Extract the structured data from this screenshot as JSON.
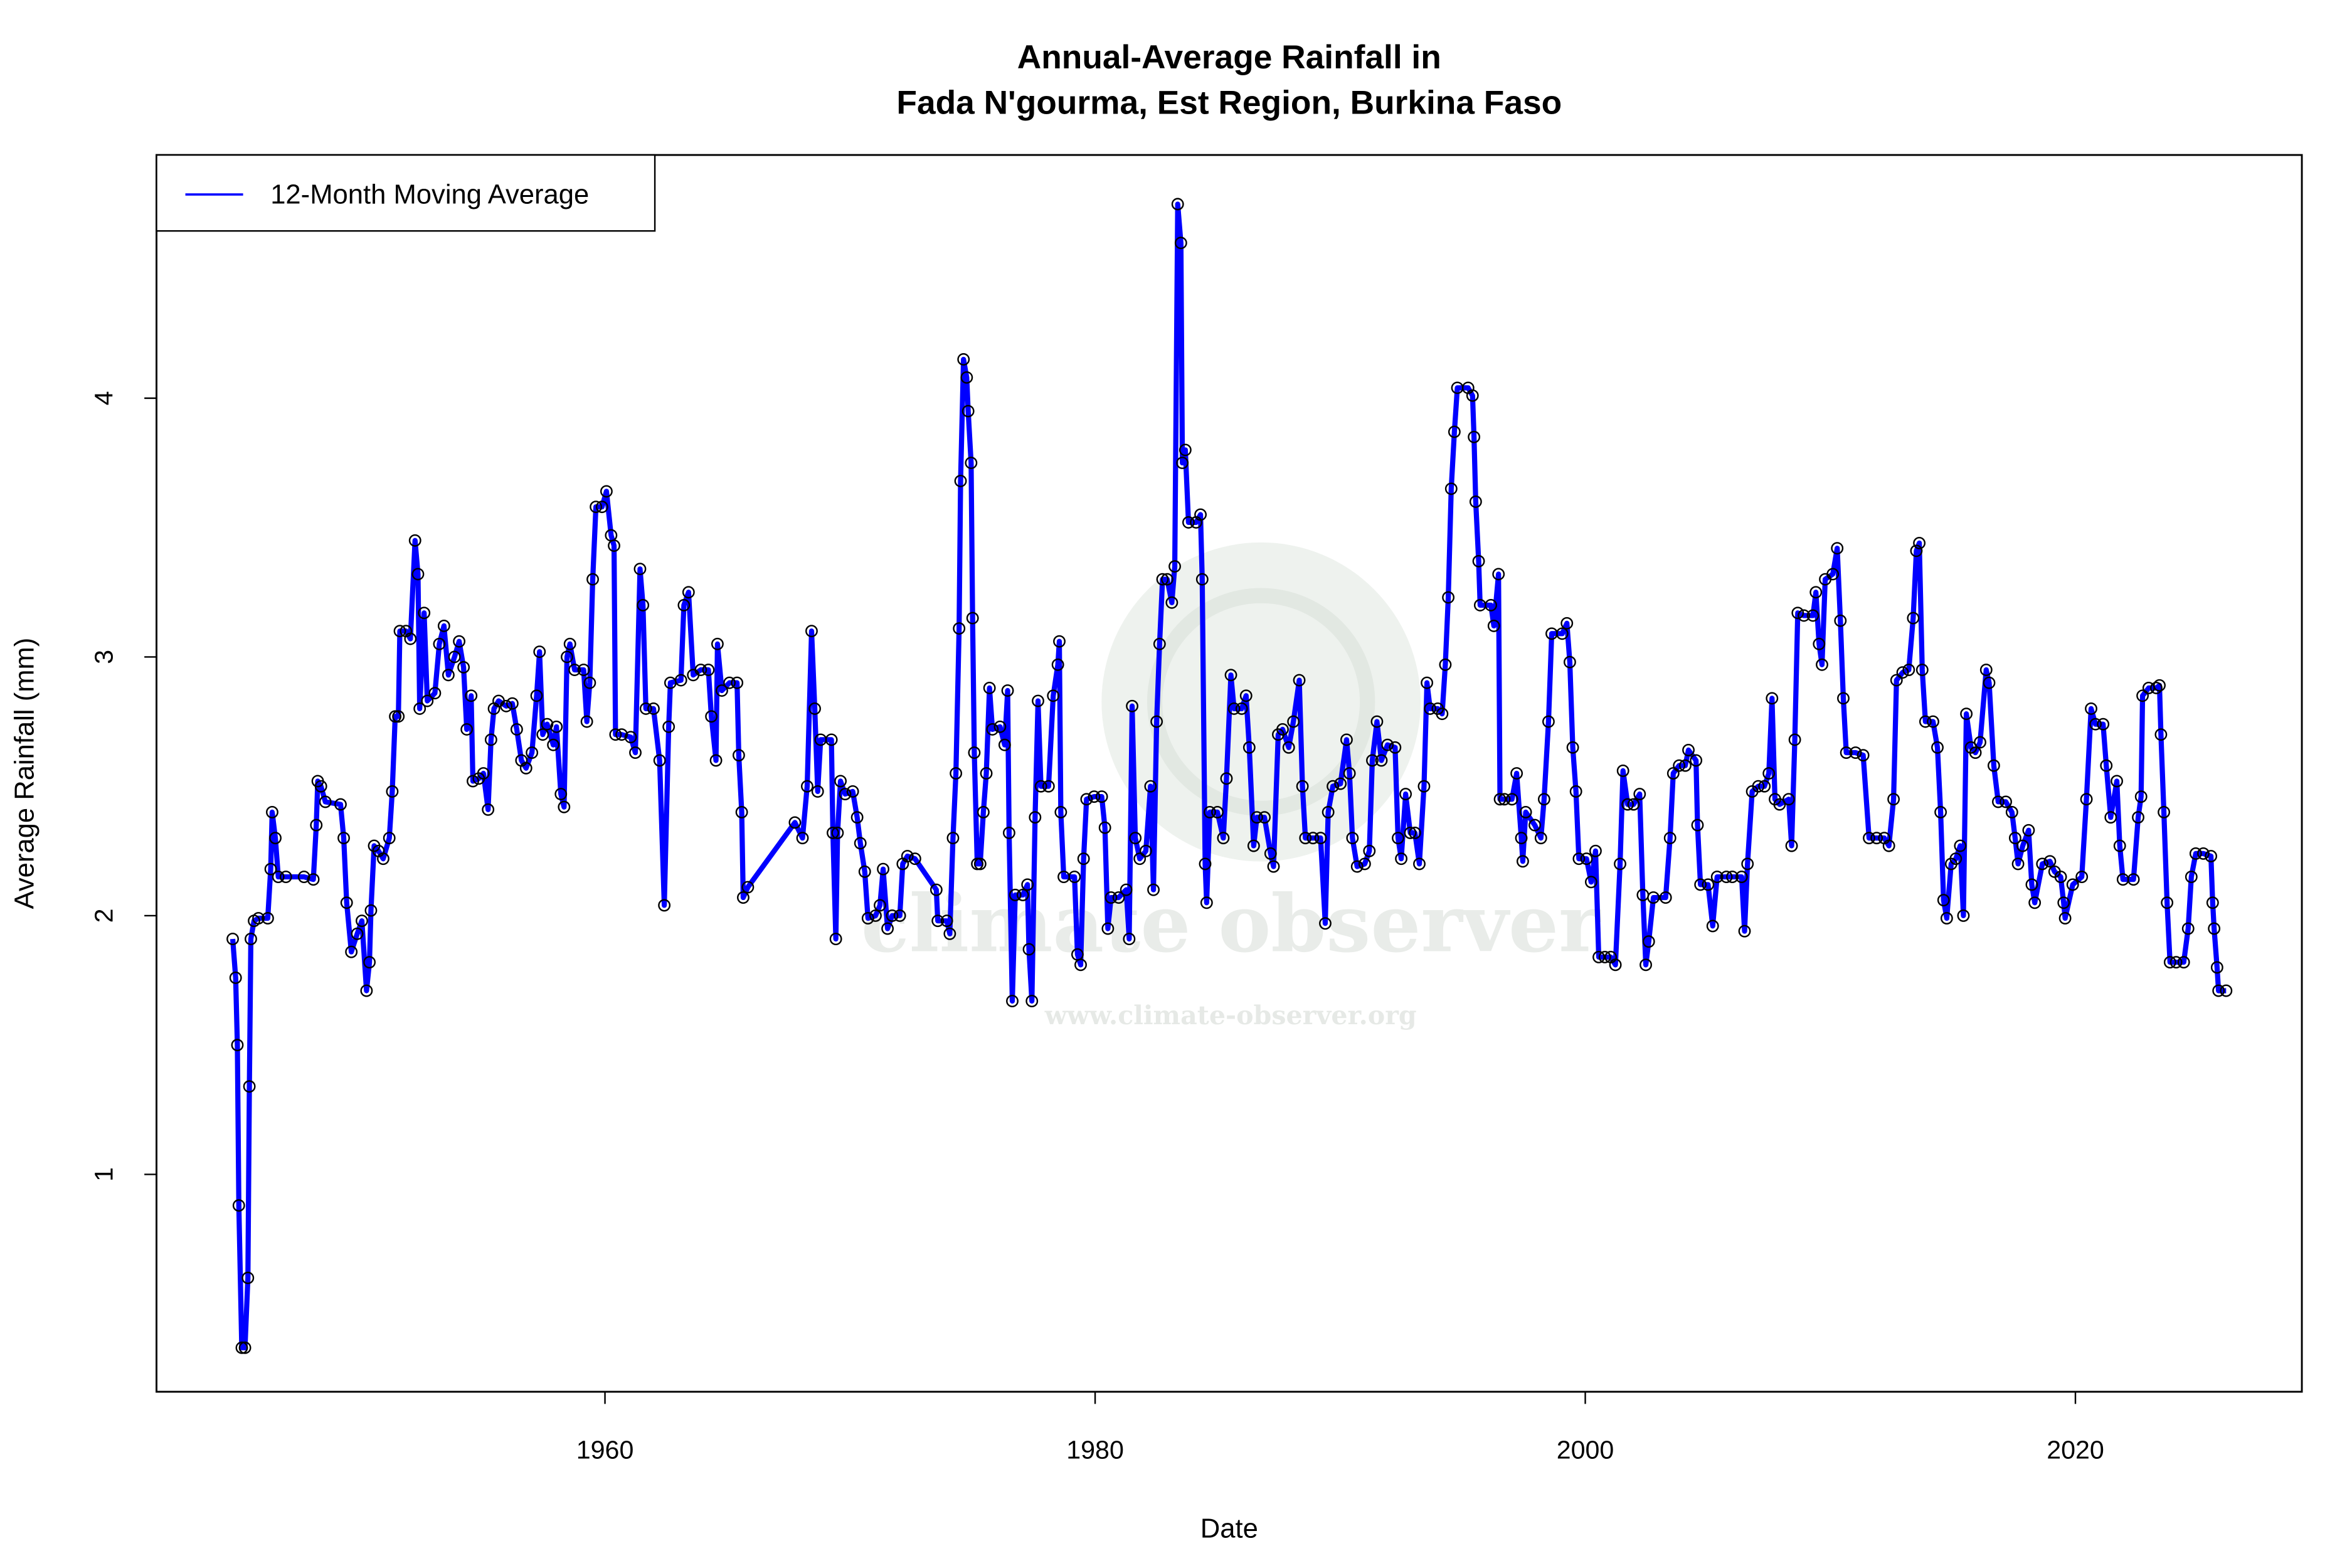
{
  "chart_data": {
    "type": "line",
    "title": [
      "Annual-Average Rainfall in",
      "Fada N'gourma, Est Region, Burkina Faso"
    ],
    "x_label": "Date",
    "y_label": "Average Rainfall (mm)",
    "watermark": "climate observer",
    "watermark_url": "www.climate-observer.org",
    "xlim": [
      1941.7,
      2029.24
    ],
    "ylim": [
      0.16,
      4.94
    ],
    "xticks": [
      1960,
      1980,
      2000,
      2020
    ],
    "yticks": [
      1,
      2,
      3,
      4
    ],
    "legend": "topleft",
    "point_color": "#000000",
    "x": [
      1944.81,
      1944.93,
      1945.0,
      1945.06,
      1945.18,
      1945.31,
      1945.43,
      1945.49,
      1945.55,
      1945.68,
      1945.86,
      1946.24,
      1946.36,
      1946.42,
      1946.55,
      1946.67,
      1946.98,
      1947.72,
      1948.1,
      1948.22,
      1948.28,
      1948.41,
      1948.59,
      1949.21,
      1949.34,
      1949.46,
      1949.65,
      1949.89,
      1950.08,
      1950.27,
      1950.39,
      1950.45,
      1950.58,
      1950.76,
      1950.95,
      1951.2,
      1951.32,
      1951.44,
      1951.57,
      1951.63,
      1951.88,
      1952.06,
      1952.25,
      1952.37,
      1952.44,
      1952.62,
      1952.75,
      1953.06,
      1953.24,
      1953.43,
      1953.61,
      1953.86,
      1954.05,
      1954.23,
      1954.36,
      1954.54,
      1954.61,
      1954.85,
      1955.04,
      1955.23,
      1955.35,
      1955.47,
      1955.66,
      1955.97,
      1956.22,
      1956.4,
      1956.59,
      1956.78,
      1957.02,
      1957.21,
      1957.33,
      1957.46,
      1957.64,
      1957.89,
      1958.02,
      1958.2,
      1958.33,
      1958.45,
      1958.57,
      1958.76,
      1959.13,
      1959.26,
      1959.38,
      1959.5,
      1959.63,
      1959.88,
      1960.06,
      1960.25,
      1960.37,
      1960.43,
      1960.68,
      1961.05,
      1961.24,
      1961.43,
      1961.55,
      1961.67,
      1961.98,
      1962.23,
      1962.42,
      1962.6,
      1962.67,
      1963.1,
      1963.22,
      1963.41,
      1963.6,
      1963.91,
      1964.22,
      1964.34,
      1964.53,
      1964.59,
      1964.77,
      1965.08,
      1965.39,
      1965.46,
      1965.58,
      1965.64,
      1965.83,
      1967.75,
      1968.06,
      1968.25,
      1968.43,
      1968.56,
      1968.68,
      1968.8,
      1969.24,
      1969.3,
      1969.42,
      1969.49,
      1969.61,
      1969.8,
      1970.11,
      1970.29,
      1970.42,
      1970.6,
      1970.73,
      1971.04,
      1971.22,
      1971.35,
      1971.53,
      1971.72,
      1972.03,
      1972.15,
      1972.34,
      1972.65,
      1973.52,
      1973.58,
      1973.95,
      1974.07,
      1974.2,
      1974.32,
      1974.45,
      1974.51,
      1974.63,
      1974.76,
      1974.82,
      1974.94,
      1975.0,
      1975.07,
      1975.19,
      1975.31,
      1975.44,
      1975.56,
      1975.69,
      1975.81,
      1976.12,
      1976.31,
      1976.43,
      1976.49,
      1976.62,
      1976.74,
      1977.05,
      1977.24,
      1977.3,
      1977.42,
      1977.55,
      1977.67,
      1977.79,
      1978.1,
      1978.29,
      1978.48,
      1978.54,
      1978.6,
      1978.72,
      1979.16,
      1979.28,
      1979.41,
      1979.53,
      1979.65,
      1979.96,
      1980.27,
      1980.4,
      1980.52,
      1980.65,
      1980.96,
      1981.27,
      1981.39,
      1981.51,
      1981.64,
      1981.82,
      1982.07,
      1982.26,
      1982.38,
      1982.51,
      1982.63,
      1982.75,
      1982.94,
      1983.13,
      1983.25,
      1983.37,
      1983.5,
      1983.56,
      1983.68,
      1983.81,
      1984.12,
      1984.3,
      1984.37,
      1984.49,
      1984.55,
      1984.68,
      1984.99,
      1985.23,
      1985.36,
      1985.54,
      1985.67,
      1985.98,
      1986.16,
      1986.29,
      1986.47,
      1986.6,
      1986.91,
      1987.16,
      1987.28,
      1987.47,
      1987.65,
      1987.9,
      1988.09,
      1988.33,
      1988.46,
      1988.58,
      1988.89,
      1989.2,
      1989.39,
      1989.51,
      1989.7,
      1990.01,
      1990.26,
      1990.38,
      1990.5,
      1990.69,
      1991.0,
      1991.19,
      1991.31,
      1991.5,
      1991.68,
      1991.93,
      1992.24,
      1992.36,
      1992.49,
      1992.67,
      1992.86,
      1993.05,
      1993.23,
      1993.42,
      1993.54,
      1993.67,
      1993.98,
      1994.16,
      1994.29,
      1994.41,
      1994.53,
      1994.66,
      1994.78,
      1995.22,
      1995.4,
      1995.46,
      1995.53,
      1995.65,
      1995.71,
      1996.15,
      1996.27,
      1996.46,
      1996.52,
      1996.7,
      1997.01,
      1997.2,
      1997.39,
      1997.45,
      1997.57,
      1997.94,
      1998.19,
      1998.32,
      1998.5,
      1998.63,
      1999.06,
      1999.25,
      1999.37,
      1999.49,
      1999.62,
      1999.74,
      2000.05,
      2000.24,
      2000.42,
      2000.55,
      2000.8,
      2001.04,
      2001.23,
      2001.42,
      2001.54,
      2001.73,
      2001.97,
      2002.22,
      2002.35,
      2002.47,
      2002.59,
      2002.78,
      2003.28,
      2003.46,
      2003.59,
      2003.83,
      2004.08,
      2004.21,
      2004.52,
      2004.58,
      2004.7,
      2005.01,
      2005.2,
      2005.38,
      2005.76,
      2006.0,
      2006.38,
      2006.5,
      2006.62,
      2006.81,
      2007.06,
      2007.31,
      2007.49,
      2007.62,
      2007.74,
      2007.93,
      2008.3,
      2008.42,
      2008.55,
      2008.67,
      2008.92,
      2009.29,
      2009.41,
      2009.54,
      2009.66,
      2009.79,
      2010.1,
      2010.28,
      2010.41,
      2010.53,
      2010.65,
      2011.03,
      2011.34,
      2011.58,
      2011.89,
      2012.2,
      2012.39,
      2012.58,
      2012.7,
      2012.95,
      2013.2,
      2013.38,
      2013.51,
      2013.63,
      2013.75,
      2013.88,
      2014.19,
      2014.37,
      2014.5,
      2014.62,
      2014.75,
      2014.93,
      2015.12,
      2015.3,
      2015.43,
      2015.55,
      2015.74,
      2015.92,
      2016.11,
      2016.36,
      2016.48,
      2016.67,
      2016.85,
      2017.16,
      2017.41,
      2017.54,
      2017.66,
      2017.85,
      2018.09,
      2018.22,
      2018.34,
      2018.65,
      2018.96,
      2019.15,
      2019.4,
      2019.52,
      2019.58,
      2019.89,
      2020.26,
      2020.45,
      2020.64,
      2020.82,
      2021.13,
      2021.26,
      2021.44,
      2021.69,
      2021.81,
      2021.94,
      2022.37,
      2022.56,
      2022.68,
      2022.74,
      2022.99,
      2023.3,
      2023.43,
      2023.49,
      2023.61,
      2023.74,
      2023.86,
      2024.11,
      2024.42,
      2024.6,
      2024.73,
      2024.91,
      2025.22,
      2025.53,
      2025.6,
      2025.66,
      2025.78,
      2025.84,
      2026.15
    ],
    "series": [
      {
        "name": "12-Month Moving Average",
        "color": "#0000ff",
        "values": [
          1.91,
          1.76,
          1.5,
          0.88,
          0.33,
          0.33,
          0.6,
          1.34,
          1.91,
          1.98,
          1.99,
          1.99,
          2.18,
          2.4,
          2.3,
          2.15,
          2.15,
          2.15,
          2.14,
          2.35,
          2.52,
          2.5,
          2.44,
          2.43,
          2.3,
          2.05,
          1.86,
          1.93,
          1.98,
          1.71,
          1.82,
          2.02,
          2.27,
          2.25,
          2.22,
          2.3,
          2.48,
          2.77,
          2.77,
          3.1,
          3.1,
          3.07,
          3.45,
          3.32,
          2.8,
          3.17,
          2.83,
          2.86,
          3.05,
          3.12,
          2.93,
          3.0,
          3.06,
          2.96,
          2.72,
          2.85,
          2.52,
          2.53,
          2.55,
          2.41,
          2.68,
          2.8,
          2.83,
          2.81,
          2.82,
          2.72,
          2.6,
          2.57,
          2.63,
          2.85,
          3.02,
          2.7,
          2.74,
          2.66,
          2.73,
          2.47,
          2.42,
          3.0,
          3.05,
          2.95,
          2.95,
          2.75,
          2.9,
          3.3,
          3.58,
          3.58,
          3.64,
          3.47,
          3.43,
          2.7,
          2.7,
          2.69,
          2.63,
          3.34,
          3.2,
          2.8,
          2.8,
          2.6,
          2.04,
          2.73,
          2.9,
          2.91,
          3.2,
          3.25,
          2.93,
          2.95,
          2.95,
          2.77,
          2.6,
          3.05,
          2.87,
          2.9,
          2.9,
          2.62,
          2.4,
          2.07,
          2.11,
          2.36,
          2.3,
          2.5,
          3.1,
          2.8,
          2.48,
          2.68,
          2.68,
          2.32,
          1.91,
          2.32,
          2.52,
          2.47,
          2.48,
          2.38,
          2.28,
          2.17,
          1.99,
          2.0,
          2.04,
          2.18,
          1.95,
          2.0,
          2.0,
          2.2,
          2.23,
          2.22,
          2.1,
          1.98,
          1.98,
          1.93,
          2.3,
          2.55,
          3.11,
          3.68,
          4.15,
          4.08,
          3.95,
          3.75,
          3.15,
          2.63,
          2.2,
          2.2,
          2.4,
          2.55,
          2.88,
          2.72,
          2.73,
          2.66,
          2.87,
          2.32,
          1.67,
          2.08,
          2.08,
          2.12,
          1.87,
          1.67,
          2.38,
          2.83,
          2.5,
          2.5,
          2.85,
          2.97,
          3.06,
          2.4,
          2.15,
          2.15,
          1.85,
          1.81,
          2.22,
          2.45,
          2.46,
          2.46,
          2.34,
          1.95,
          2.07,
          2.07,
          2.1,
          1.91,
          2.81,
          2.3,
          2.22,
          2.25,
          2.5,
          2.1,
          2.75,
          3.05,
          3.3,
          3.3,
          3.21,
          3.35,
          4.75,
          4.6,
          3.75,
          3.8,
          3.52,
          3.52,
          3.55,
          3.3,
          2.2,
          2.05,
          2.4,
          2.4,
          2.3,
          2.53,
          2.93,
          2.8,
          2.8,
          2.85,
          2.65,
          2.27,
          2.38,
          2.38,
          2.24,
          2.19,
          2.7,
          2.72,
          2.65,
          2.75,
          2.91,
          2.5,
          2.3,
          2.3,
          2.3,
          1.97,
          2.4,
          2.5,
          2.51,
          2.68,
          2.55,
          2.3,
          2.19,
          2.2,
          2.25,
          2.6,
          2.75,
          2.6,
          2.66,
          2.65,
          2.3,
          2.22,
          2.47,
          2.32,
          2.32,
          2.2,
          2.5,
          2.9,
          2.8,
          2.8,
          2.78,
          2.97,
          3.23,
          3.65,
          3.87,
          4.04,
          4.04,
          4.01,
          3.85,
          3.6,
          3.37,
          3.2,
          3.2,
          3.12,
          3.32,
          2.45,
          2.45,
          2.45,
          2.55,
          2.3,
          2.21,
          2.4,
          2.35,
          2.3,
          2.45,
          2.75,
          3.09,
          3.09,
          3.13,
          2.98,
          2.65,
          2.48,
          2.22,
          2.22,
          2.13,
          2.25,
          1.84,
          1.84,
          1.84,
          1.81,
          2.2,
          2.56,
          2.43,
          2.43,
          2.47,
          2.08,
          1.81,
          1.9,
          2.07,
          2.07,
          2.3,
          2.55,
          2.58,
          2.58,
          2.64,
          2.6,
          2.35,
          2.12,
          2.12,
          1.96,
          2.15,
          2.15,
          2.15,
          2.15,
          1.94,
          2.2,
          2.48,
          2.5,
          2.5,
          2.55,
          2.84,
          2.45,
          2.43,
          2.45,
          2.27,
          2.68,
          3.17,
          3.16,
          3.16,
          3.25,
          3.05,
          2.97,
          3.3,
          3.32,
          3.42,
          3.14,
          2.84,
          2.63,
          2.63,
          2.62,
          2.3,
          2.3,
          2.3,
          2.27,
          2.45,
          2.91,
          2.94,
          2.95,
          3.15,
          3.41,
          3.44,
          2.95,
          2.75,
          2.75,
          2.65,
          2.4,
          2.06,
          1.99,
          2.2,
          2.22,
          2.27,
          2.0,
          2.78,
          2.65,
          2.63,
          2.67,
          2.95,
          2.9,
          2.58,
          2.44,
          2.44,
          2.4,
          2.3,
          2.2,
          2.27,
          2.33,
          2.12,
          2.05,
          2.2,
          2.21,
          2.17,
          2.15,
          2.05,
          1.99,
          2.12,
          2.15,
          2.45,
          2.8,
          2.74,
          2.74,
          2.58,
          2.38,
          2.52,
          2.27,
          2.14,
          2.14,
          2.38,
          2.46,
          2.85,
          2.88,
          2.88,
          2.89,
          2.7,
          2.4,
          2.05,
          1.82,
          1.82,
          1.82,
          1.95,
          2.15,
          2.24,
          2.24,
          2.23,
          2.05,
          1.95,
          1.8,
          1.71,
          1.71
        ]
      }
    ]
  }
}
